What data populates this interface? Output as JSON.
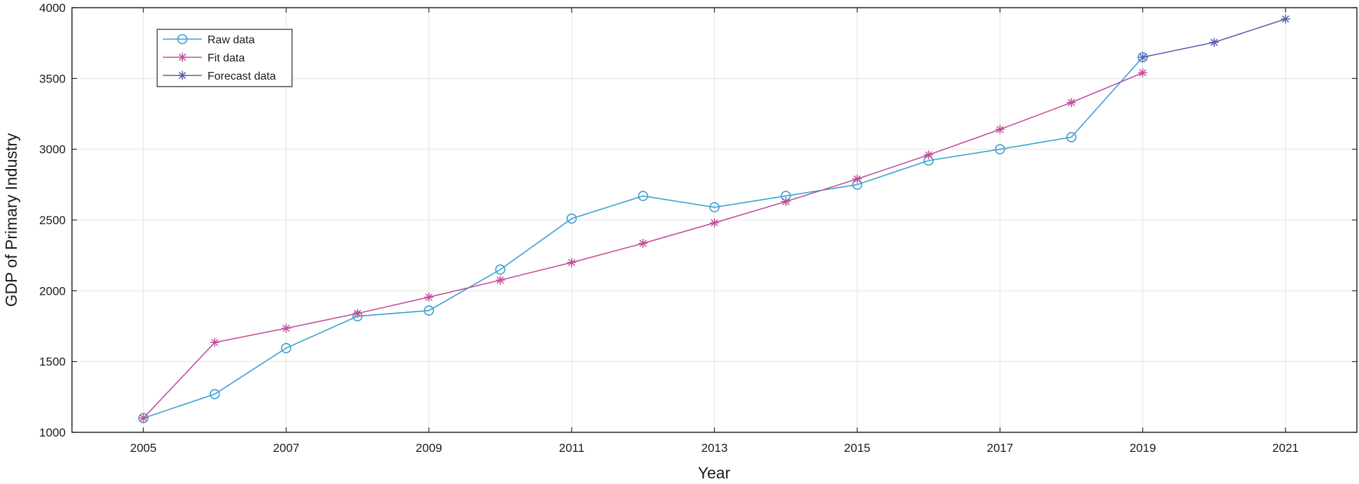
{
  "chart_data": {
    "type": "line",
    "title": "",
    "xlabel": "Year",
    "ylabel": "GDP of Primary Industry",
    "xlim": [
      2004,
      2022
    ],
    "ylim": [
      1000,
      4000
    ],
    "xticks": [
      2005,
      2007,
      2009,
      2011,
      2013,
      2015,
      2017,
      2019,
      2021
    ],
    "yticks": [
      1000,
      1500,
      2000,
      2500,
      3000,
      3500,
      4000
    ],
    "grid": true,
    "legend_position": "top-left",
    "series": [
      {
        "name": "Raw data",
        "marker": "circle",
        "color": "#3a9fd0",
        "x": [
          2005,
          2006,
          2007,
          2008,
          2009,
          2010,
          2011,
          2012,
          2013,
          2014,
          2015,
          2016,
          2017,
          2018,
          2019
        ],
        "y": [
          1100,
          1270,
          1595,
          1820,
          1860,
          2150,
          2510,
          2670,
          2590,
          2670,
          2750,
          2920,
          3000,
          3085,
          3650
        ]
      },
      {
        "name": "Fit data",
        "marker": "asterisk",
        "color": "#c0509a",
        "x": [
          2005,
          2006,
          2007,
          2008,
          2009,
          2010,
          2011,
          2012,
          2013,
          2014,
          2015,
          2016,
          2017,
          2018,
          2019
        ],
        "y": [
          1100,
          1635,
          1735,
          1840,
          1955,
          2075,
          2200,
          2335,
          2480,
          2630,
          2790,
          2960,
          3140,
          3330,
          3540
        ]
      },
      {
        "name": "Forecast data",
        "marker": "asterisk",
        "color": "#5a5fb0",
        "x": [
          2019,
          2020,
          2021
        ],
        "y": [
          3650,
          3755,
          3920
        ]
      }
    ]
  }
}
